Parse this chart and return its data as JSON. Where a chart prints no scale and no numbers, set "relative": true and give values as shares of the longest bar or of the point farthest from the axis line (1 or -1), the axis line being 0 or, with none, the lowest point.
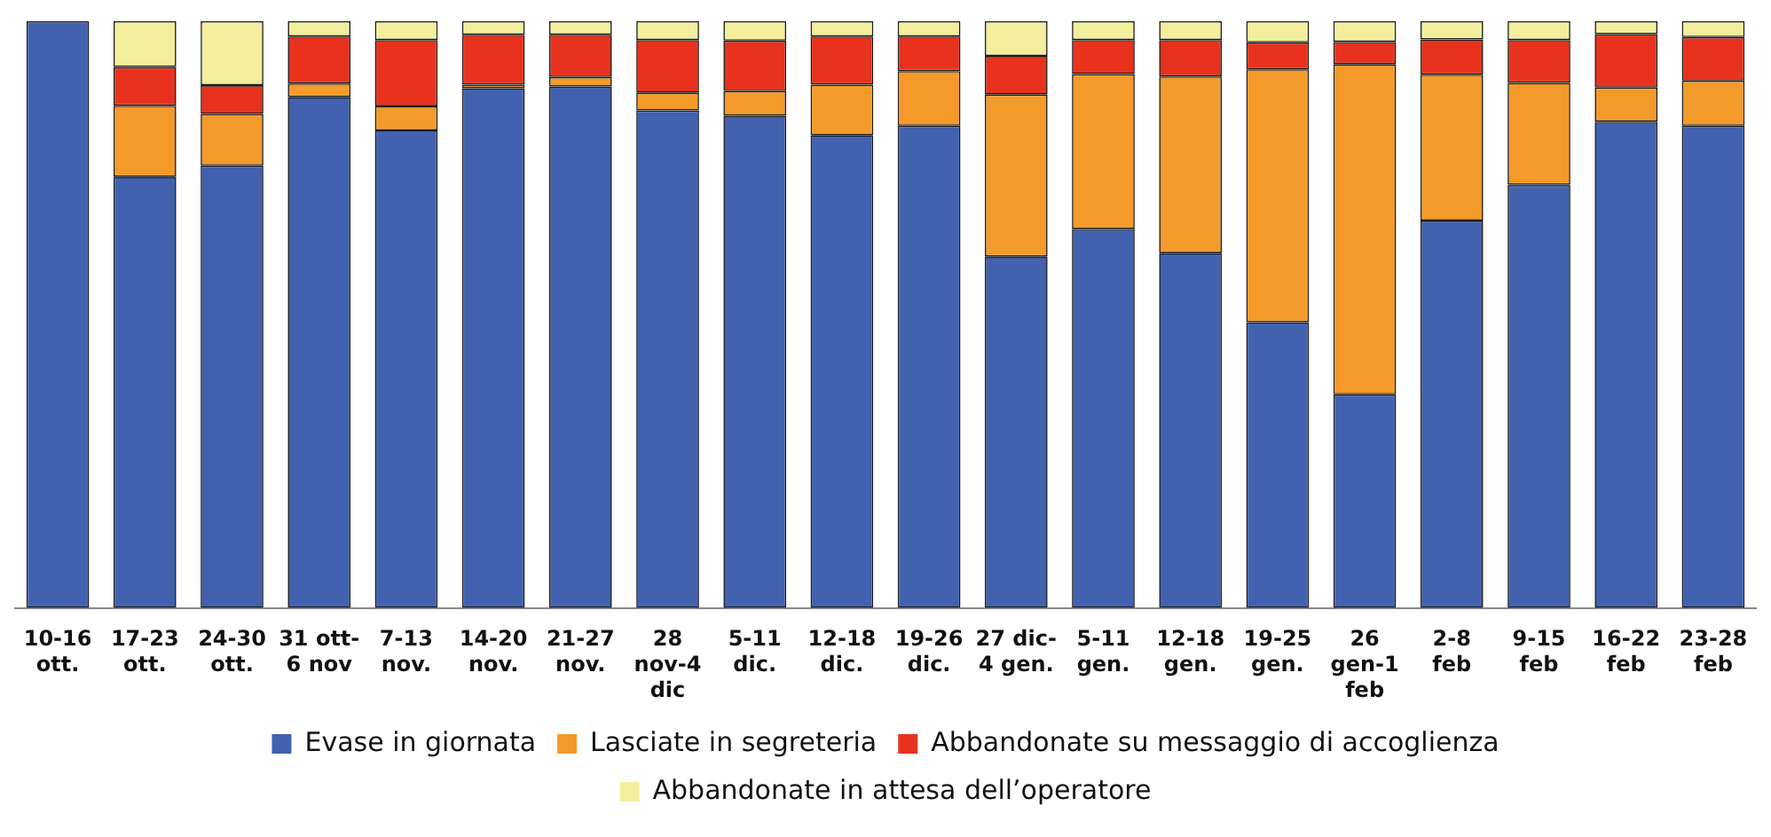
{
  "chart_data": {
    "type": "bar",
    "stacked": true,
    "relative": true,
    "grid": false,
    "legend": "bottom",
    "categories": [
      "10-16\nott.",
      "17-23\nott.",
      "24-30\nott.",
      "31 ott-\n6 nov",
      "7-13\nnov.",
      "14-20\nnov.",
      "21-27\nnov.",
      "28\nnov-4\ndic",
      "5-11\ndic.",
      "12-18\ndic.",
      "19-26\ndic.",
      "27 dic-\n4 gen.",
      "5-11\ngen.",
      "12-18\ngen.",
      "19-25\ngen.",
      "26\ngen-1\nfeb",
      "2-8\nfeb",
      "9-15\nfeb",
      "16-22\nfeb",
      "23-28\nfeb"
    ],
    "series": [
      {
        "name": "Evase in giornata",
        "color": "#4262b0",
        "values": [
          1,
          0.735,
          0.754,
          0.871,
          0.814,
          0.886,
          0.889,
          0.848,
          0.839,
          0.806,
          0.822,
          0.599,
          0.646,
          0.605,
          0.487,
          0.364,
          0.66,
          0.721,
          0.829,
          0.822
        ]
      },
      {
        "name": "Lasciate in segreteria",
        "color": "#f39a2a",
        "values": [
          0,
          0.121,
          0.088,
          0.023,
          0.041,
          0.006,
          0.016,
          0.03,
          0.042,
          0.086,
          0.093,
          0.276,
          0.264,
          0.301,
          0.431,
          0.563,
          0.249,
          0.174,
          0.058,
          0.077
        ]
      },
      {
        "name": "Abbandonate su messaggio di accoglienza",
        "color": "#e8321e",
        "values": [
          0,
          0.066,
          0.049,
          0.08,
          0.113,
          0.085,
          0.072,
          0.09,
          0.086,
          0.082,
          0.059,
          0.066,
          0.058,
          0.062,
          0.046,
          0.038,
          0.06,
          0.073,
          0.091,
          0.074
        ]
      },
      {
        "name": "Abbandonate in attesa dell’operatore",
        "color": "#f2ee9c",
        "values": [
          0,
          0.078,
          0.109,
          0.026,
          0.032,
          0.023,
          0.023,
          0.032,
          0.033,
          0.026,
          0.026,
          0.059,
          0.032,
          0.032,
          0.036,
          0.035,
          0.031,
          0.032,
          0.022,
          0.027
        ]
      }
    ]
  }
}
